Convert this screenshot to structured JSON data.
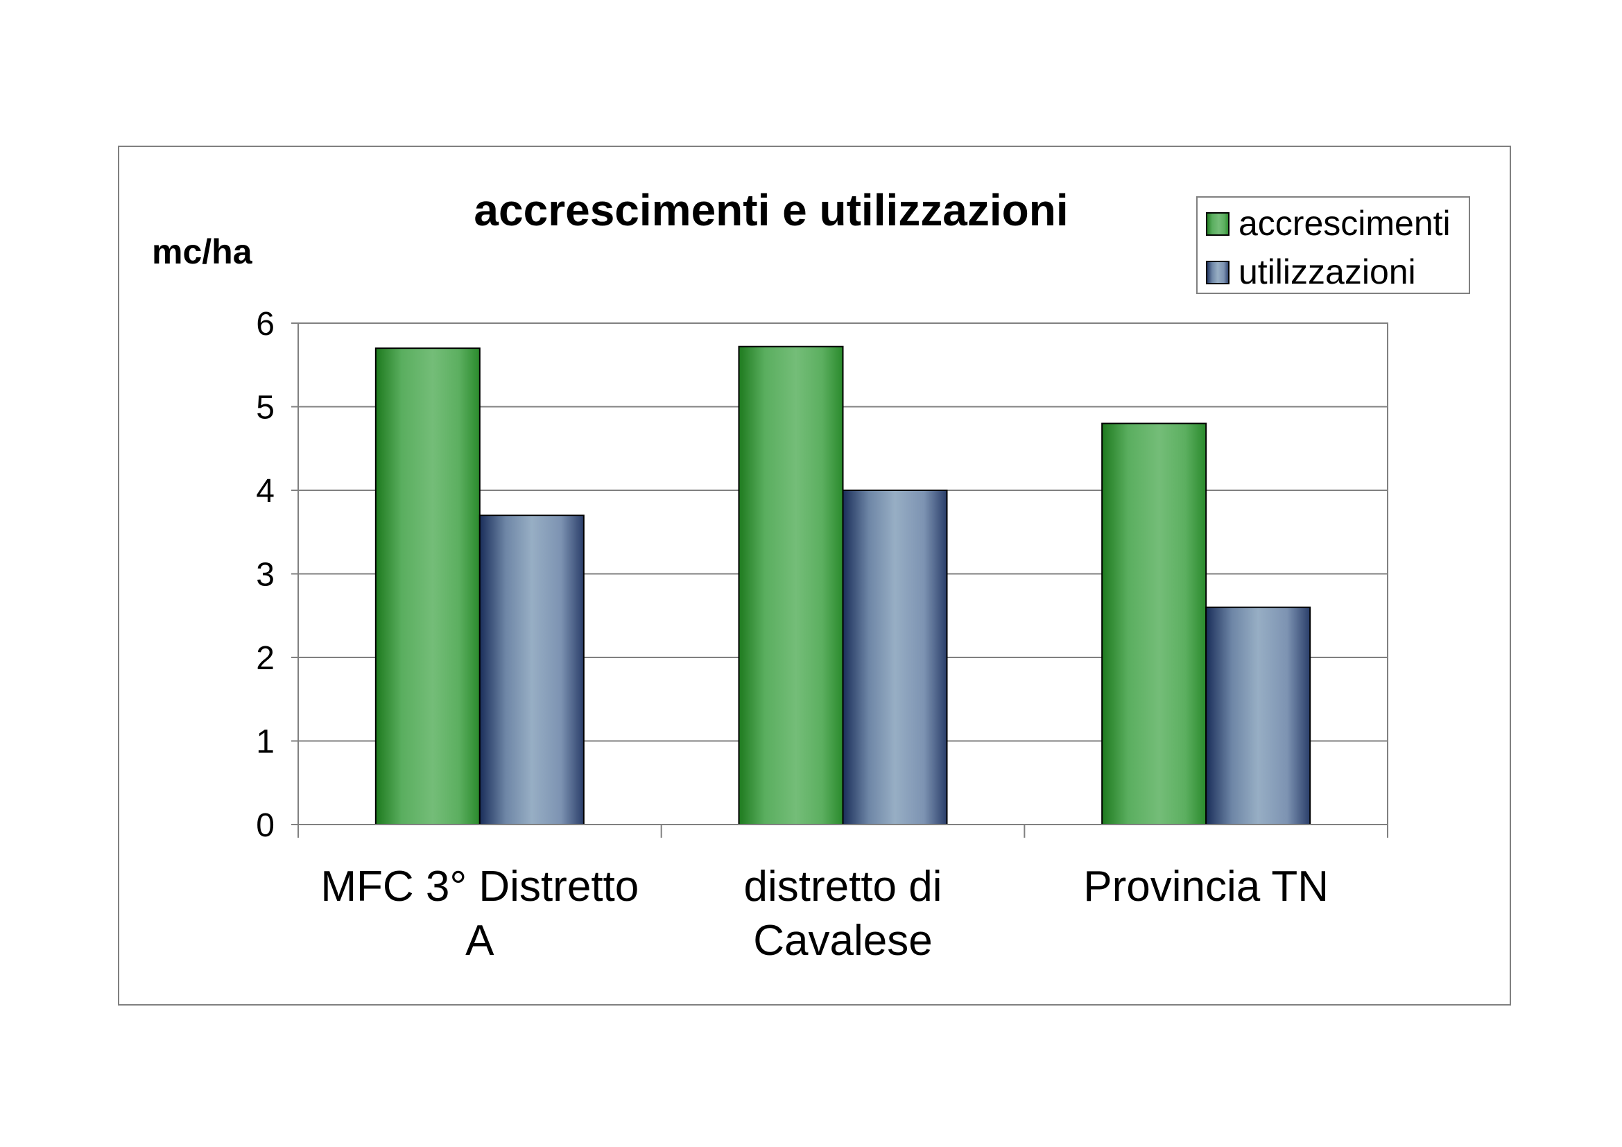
{
  "chart_data": {
    "type": "bar",
    "title": "accrescimenti e utilizzazioni",
    "ylabel": "mc/ha",
    "xlabel": "",
    "categories": [
      [
        "MFC 3° Distretto",
        "A"
      ],
      [
        "distretto di",
        "Cavalese"
      ],
      [
        "Provincia TN"
      ]
    ],
    "series": [
      {
        "name": "accrescimenti",
        "values": [
          5.7,
          5.72,
          4.8
        ],
        "color": "#6BB86F",
        "edge_color": "#1E7A1E"
      },
      {
        "name": "utilizzazioni",
        "values": [
          3.7,
          4.0,
          2.6
        ],
        "color": "#91A8C0",
        "edge_color": "#1A2E5A"
      }
    ],
    "ylim": [
      0,
      6
    ],
    "yticks": [
      "0",
      "1",
      "2",
      "3",
      "4",
      "5",
      "6"
    ],
    "grid": true,
    "legend": "top-right"
  }
}
